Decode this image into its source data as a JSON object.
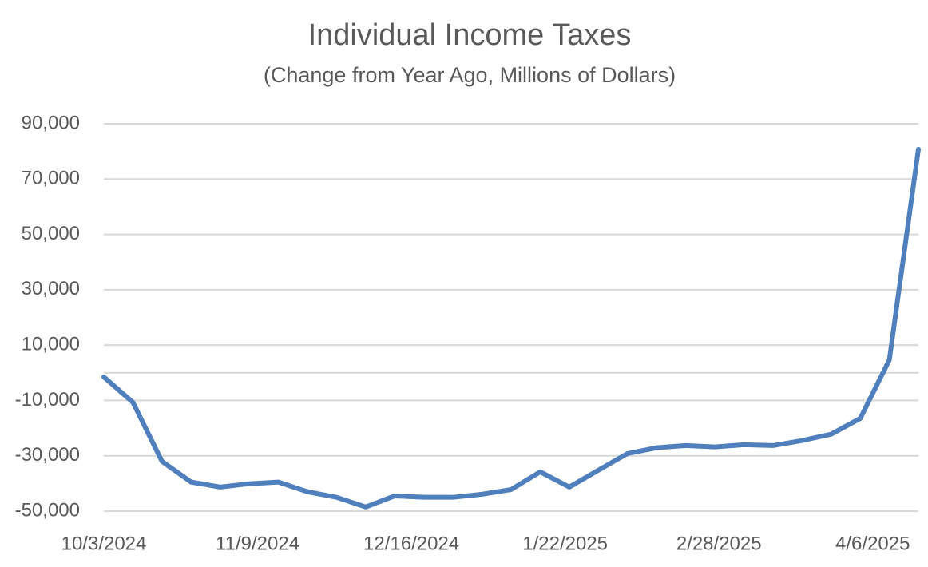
{
  "chart_data": {
    "type": "line",
    "title": "Individual Income Taxes",
    "subtitle": "(Change from Year Ago, Millions of Dollars)",
    "x": [
      "10/3/2024",
      "10/10/2024",
      "10/17/2024",
      "10/24/2024",
      "10/31/2024",
      "11/7/2024",
      "11/14/2024",
      "11/21/2024",
      "11/28/2024",
      "12/5/2024",
      "12/12/2024",
      "12/19/2024",
      "12/26/2024",
      "1/2/2025",
      "1/9/2025",
      "1/16/2025",
      "1/23/2025",
      "1/30/2025",
      "2/6/2025",
      "2/13/2025",
      "2/20/2025",
      "2/27/2025",
      "3/6/2025",
      "3/13/2025",
      "3/20/2025",
      "3/27/2025",
      "4/3/2025",
      "4/10/2025",
      "4/17/2025"
    ],
    "series": [
      {
        "name": "Individual Income Taxes",
        "color": "#4f7fbc",
        "values": [
          -1500,
          -10700,
          -32000,
          -39500,
          -41300,
          -40100,
          -39500,
          -43000,
          -45000,
          -48500,
          -44500,
          -45000,
          -45000,
          -43900,
          -42200,
          -35800,
          -41300,
          -35200,
          -29200,
          -27100,
          -26300,
          -26800,
          -26000,
          -26300,
          -24500,
          -22200,
          -16500,
          4600,
          80800
        ]
      }
    ],
    "xlim": [
      "10/3/2024",
      "4/17/2025"
    ],
    "xticks": [
      "10/3/2024",
      "11/9/2024",
      "12/16/2024",
      "1/22/2025",
      "2/28/2025",
      "4/6/2025"
    ],
    "ylim": [
      -50000,
      90000
    ],
    "yticks": [
      {
        "value": -50000,
        "label": "-50,000"
      },
      {
        "value": -30000,
        "label": "-30,000"
      },
      {
        "value": -10000,
        "label": "-10,000"
      },
      {
        "value": 10000,
        "label": "10,000"
      },
      {
        "value": 30000,
        "label": "30,000"
      },
      {
        "value": 50000,
        "label": "50,000"
      },
      {
        "value": 70000,
        "label": "70,000"
      },
      {
        "value": 90000,
        "label": "90,000"
      }
    ],
    "grid": true
  }
}
